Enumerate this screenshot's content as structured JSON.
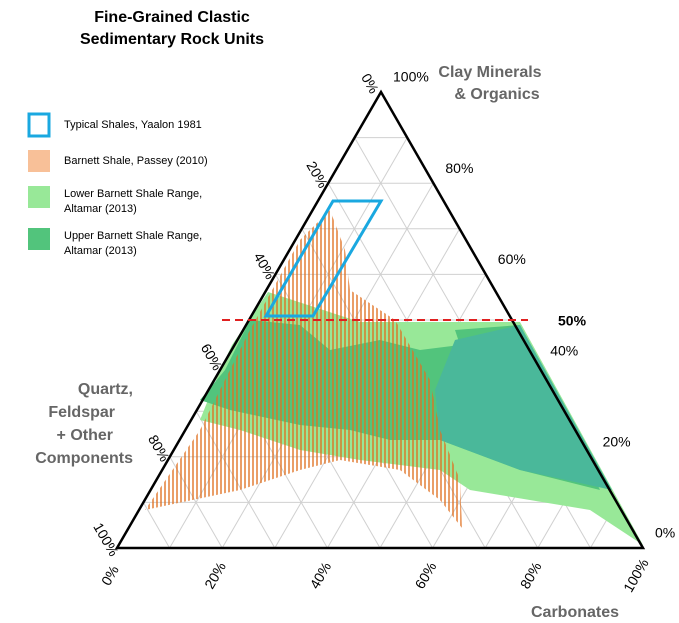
{
  "title": [
    "Fine-Grained Clastic",
    "Sedimentary Rock Units"
  ],
  "vertices": {
    "top": [
      "Clay Minerals",
      "& Organics"
    ],
    "left": [
      "Quartz,",
      "Feldspar",
      "+ Other",
      "Components"
    ],
    "right": [
      "Carbonates"
    ]
  },
  "legend": [
    {
      "label": [
        "Typical Shales, Yaalon 1981"
      ]
    },
    {
      "label": [
        "Barnett Shale, Passey (2010)"
      ]
    },
    {
      "label": [
        "Lower Barnett Shale Range,",
        "Altamar (2013)"
      ]
    },
    {
      "label": [
        "Upper Barnett Shale Range,",
        "Altamar (2013)"
      ]
    }
  ],
  "left_ticks": [
    "0%",
    "20%",
    "40%",
    "60%",
    "80%",
    "100%"
  ],
  "right_ticks": [
    "100%",
    "80%",
    "60%",
    "40%",
    "20%",
    "0%"
  ],
  "bottom_ticks": [
    "0%",
    "20%",
    "40%",
    "60%",
    "80%",
    "100%"
  ],
  "threshold_label": "50%"
}
